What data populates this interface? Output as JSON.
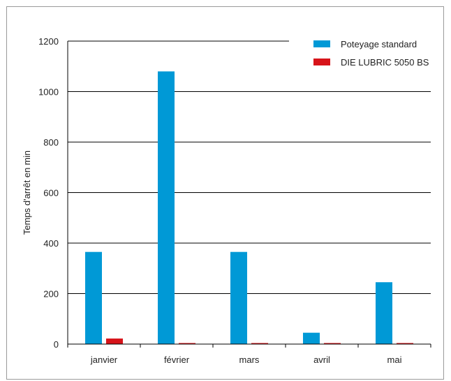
{
  "chart_data": {
    "type": "bar",
    "categories": [
      "janvier",
      "février",
      "mars",
      "avril",
      "mai"
    ],
    "series": [
      {
        "name": "Poteyage standard",
        "color": "#0099d6",
        "values": [
          365,
          1080,
          365,
          45,
          245
        ]
      },
      {
        "name": "DIE LUBRIC 5050 BS",
        "color": "#d7141a",
        "values": [
          22,
          3,
          3,
          3,
          3
        ]
      }
    ],
    "ylabel": "Temps d'arrêt en min",
    "ylim": [
      0,
      1200
    ],
    "yticks": [
      0,
      200,
      400,
      600,
      800,
      1000,
      1200
    ],
    "grid": true,
    "legend_position": "top-right"
  }
}
